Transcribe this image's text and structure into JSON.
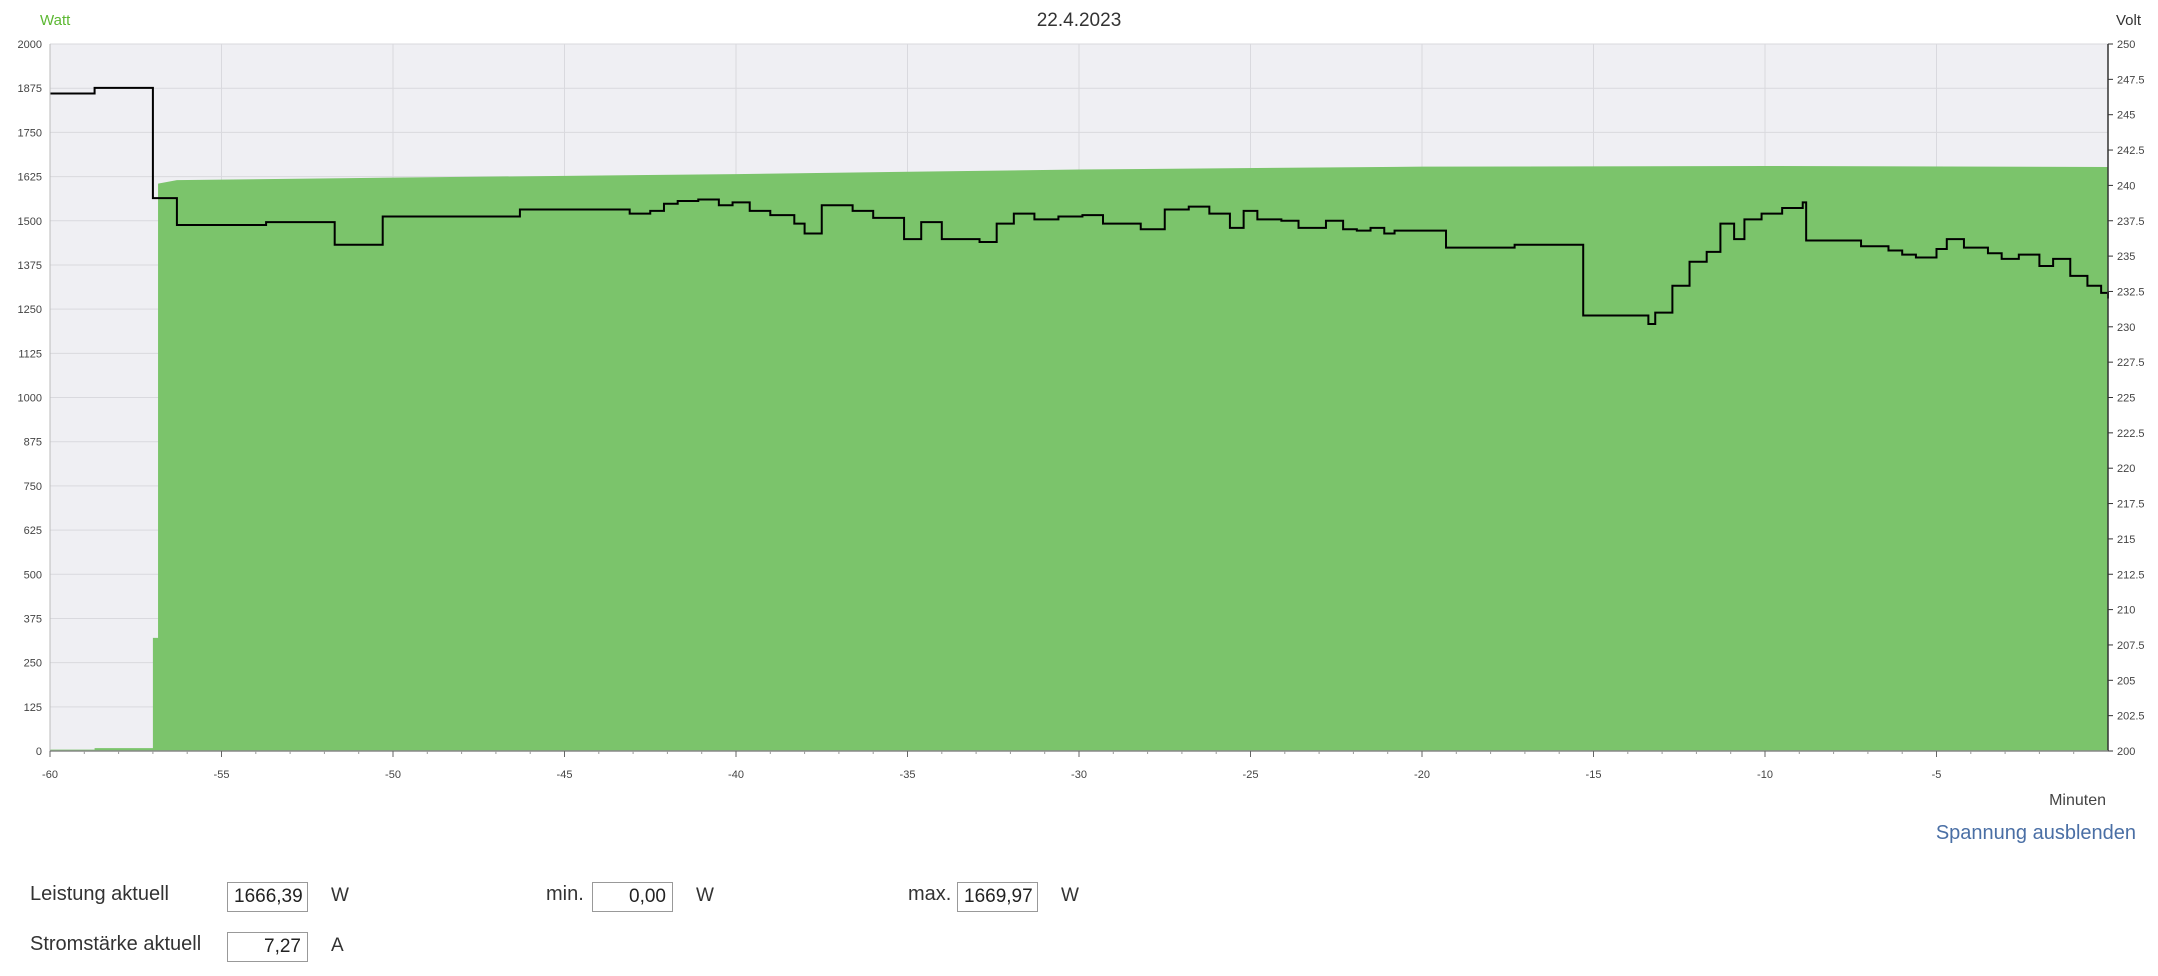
{
  "header": {
    "left_axis_unit": "Watt",
    "date": "22.4.2023",
    "right_axis_unit": "Volt"
  },
  "footer": {
    "x_axis_unit": "Minuten",
    "toggle_voltage_label": "Spannung ausblenden"
  },
  "stats": {
    "power_label": "Leistung aktuell",
    "power_value": "1666,39",
    "power_unit": "W",
    "min_label": "min.",
    "min_value": "0,00",
    "min_unit": "W",
    "max_label": "max.",
    "max_value": "1669,97",
    "max_unit": "W",
    "current_label": "Stromstärke aktuell",
    "current_value": "7,27",
    "current_unit": "A"
  },
  "colors": {
    "power_fill": "#7bc46b",
    "voltage_line": "#000000",
    "plot_background": "#efeff3"
  },
  "chart_data": {
    "type": "area",
    "x_range": [
      -60,
      0
    ],
    "x_ticks": [
      -60,
      -55,
      -50,
      -45,
      -40,
      -35,
      -30,
      -25,
      -20,
      -15,
      -10,
      -5
    ],
    "y_left_range": [
      0,
      2000
    ],
    "y_left_ticks": [
      0,
      125,
      250,
      375,
      500,
      625,
      750,
      875,
      1000,
      1125,
      1250,
      1375,
      1500,
      1625,
      1750,
      1875,
      2000
    ],
    "y_right_range": [
      200,
      250
    ],
    "y_right_ticks": [
      "200",
      "202.5",
      "205",
      "207.5",
      "210",
      "212.5",
      "215",
      "217.5",
      "220",
      "222.5",
      "225",
      "227.5",
      "230",
      "232.5",
      "235",
      "237.5",
      "240",
      "242.5",
      "245",
      "247.5",
      "250"
    ],
    "grid": true,
    "series": [
      {
        "name": "Watt",
        "axis": "left",
        "step": true,
        "points": [
          [
            -60,
            4
          ],
          [
            -58.7,
            8
          ],
          [
            -57.0,
            320
          ],
          [
            -56.85,
            1605
          ],
          [
            -56.3,
            1615
          ],
          [
            -50,
            1622
          ],
          [
            -40,
            1632
          ],
          [
            -30,
            1645
          ],
          [
            -20,
            1653
          ],
          [
            -10,
            1655
          ],
          [
            0,
            1652
          ]
        ]
      },
      {
        "name": "Volt",
        "axis": "right",
        "step": true,
        "points": [
          [
            -60,
            246.5
          ],
          [
            -58.7,
            246.9
          ],
          [
            -57.0,
            239.1
          ],
          [
            -56.3,
            237.2
          ],
          [
            -53.7,
            237.4
          ],
          [
            -51.7,
            235.8
          ],
          [
            -50.3,
            237.8
          ],
          [
            -46.3,
            238.3
          ],
          [
            -43.1,
            238.0
          ],
          [
            -42.5,
            238.2
          ],
          [
            -42.1,
            238.7
          ],
          [
            -41.7,
            238.9
          ],
          [
            -41.1,
            239.0
          ],
          [
            -40.5,
            238.6
          ],
          [
            -40.1,
            238.8
          ],
          [
            -39.6,
            238.2
          ],
          [
            -39.0,
            237.9
          ],
          [
            -38.3,
            237.3
          ],
          [
            -38.0,
            236.6
          ],
          [
            -37.5,
            238.6
          ],
          [
            -36.6,
            238.2
          ],
          [
            -36.0,
            237.7
          ],
          [
            -35.1,
            236.2
          ],
          [
            -34.6,
            237.4
          ],
          [
            -34.0,
            236.2
          ],
          [
            -32.9,
            236.0
          ],
          [
            -32.4,
            237.3
          ],
          [
            -31.9,
            238.0
          ],
          [
            -31.3,
            237.6
          ],
          [
            -30.6,
            237.8
          ],
          [
            -29.9,
            237.9
          ],
          [
            -29.3,
            237.3
          ],
          [
            -28.2,
            236.9
          ],
          [
            -27.5,
            238.3
          ],
          [
            -26.8,
            238.5
          ],
          [
            -26.2,
            238.0
          ],
          [
            -25.6,
            237.0
          ],
          [
            -25.2,
            238.2
          ],
          [
            -24.8,
            237.6
          ],
          [
            -24.1,
            237.5
          ],
          [
            -23.6,
            237.0
          ],
          [
            -22.8,
            237.5
          ],
          [
            -22.3,
            236.9
          ],
          [
            -21.9,
            236.8
          ],
          [
            -21.5,
            237.0
          ],
          [
            -21.1,
            236.6
          ],
          [
            -20.8,
            236.8
          ],
          [
            -19.3,
            235.6
          ],
          [
            -17.3,
            235.8
          ],
          [
            -15.3,
            230.8
          ],
          [
            -13.4,
            230.2
          ],
          [
            -13.2,
            231.0
          ],
          [
            -12.7,
            232.9
          ],
          [
            -12.2,
            234.6
          ],
          [
            -11.7,
            235.3
          ],
          [
            -11.3,
            237.3
          ],
          [
            -10.9,
            236.2
          ],
          [
            -10.6,
            237.6
          ],
          [
            -10.1,
            238.0
          ],
          [
            -9.5,
            238.4
          ],
          [
            -8.9,
            238.8
          ],
          [
            -8.8,
            236.1
          ],
          [
            -7.2,
            235.7
          ],
          [
            -6.4,
            235.4
          ],
          [
            -6.0,
            235.1
          ],
          [
            -5.6,
            234.9
          ],
          [
            -5.0,
            235.5
          ],
          [
            -4.7,
            236.2
          ],
          [
            -4.2,
            235.6
          ],
          [
            -3.5,
            235.2
          ],
          [
            -3.1,
            234.8
          ],
          [
            -2.6,
            235.1
          ],
          [
            -2.0,
            234.3
          ],
          [
            -1.6,
            234.8
          ],
          [
            -1.1,
            233.6
          ],
          [
            -0.6,
            232.9
          ],
          [
            -0.2,
            232.4
          ],
          [
            0,
            232.0
          ]
        ]
      }
    ]
  }
}
